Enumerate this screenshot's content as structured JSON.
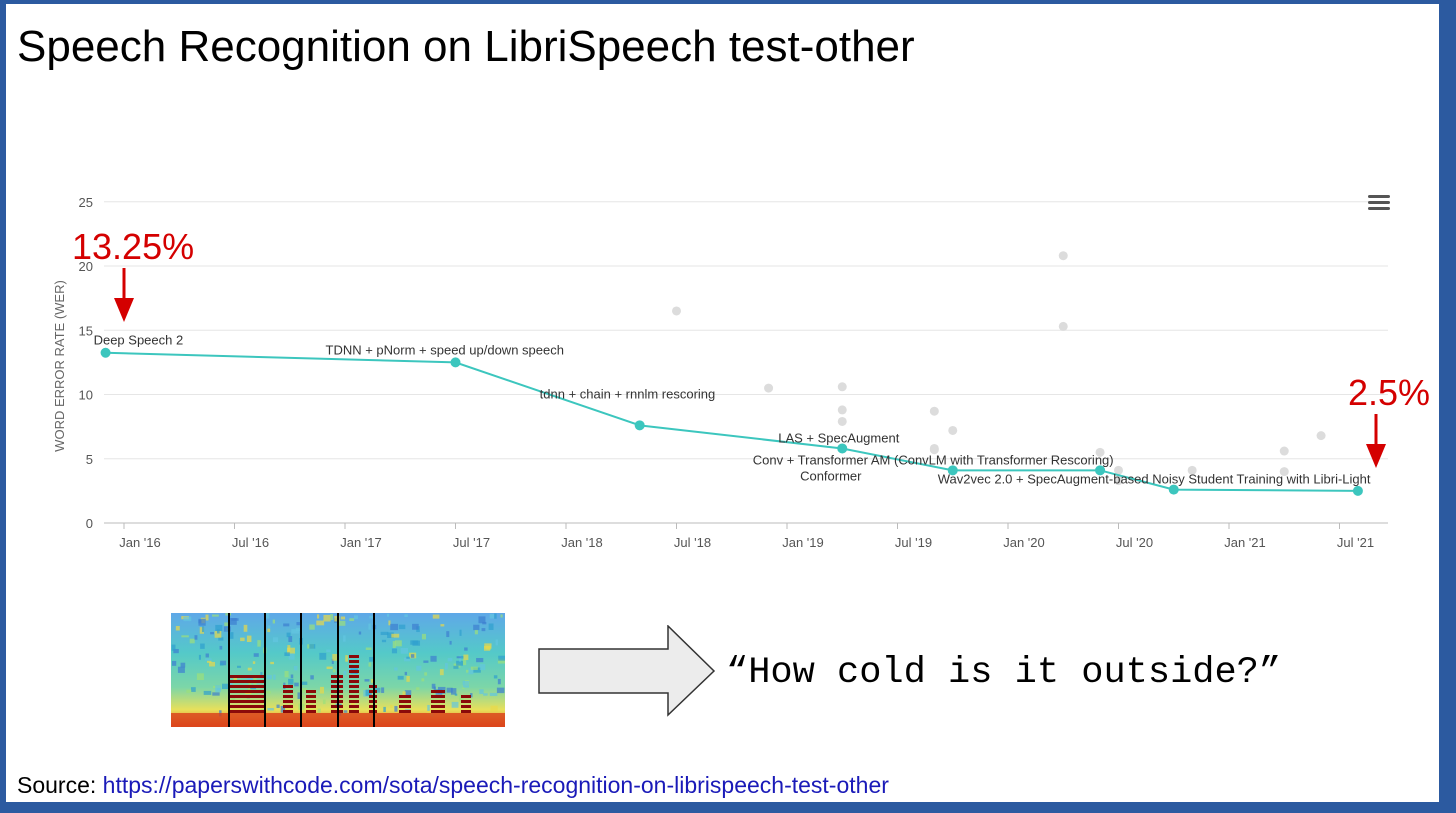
{
  "title": "Speech Recognition on LibriSpeech test-other",
  "chart_data": {
    "type": "line",
    "ylabel": "WORD ERROR RATE (WER)",
    "xlabel": "",
    "ylim": [
      0,
      25
    ],
    "yticks": [
      "0",
      "5",
      "10",
      "15",
      "20",
      "25"
    ],
    "xtick_labels": [
      "Jan '16",
      "Jul '16",
      "Jan '17",
      "Jul '17",
      "Jan '18",
      "Jul '18",
      "Jan '19",
      "Jul '19",
      "Jan '20",
      "Jul '20",
      "Jan '21",
      "Jul '21"
    ],
    "grid": true,
    "sota_series": [
      {
        "x": "2015-12",
        "y": 13.25,
        "label": "Deep Speech 2"
      },
      {
        "x": "2017-07",
        "y": 12.5,
        "label": "TDNN + pNorm + speed up/down speech"
      },
      {
        "x": "2018-05",
        "y": 7.6,
        "label": "tdnn + chain + rnnlm rescoring"
      },
      {
        "x": "2019-04",
        "y": 5.8,
        "label": "LAS + SpecAugment"
      },
      {
        "x": "2019-10",
        "y": 4.1,
        "label": "Conv + Transformer AM (ConvLM with Transformer Rescoring)"
      },
      {
        "x": "2020-06",
        "y": 4.1,
        "label": "Conformer"
      },
      {
        "x": "2020-10",
        "y": 2.6,
        "label": "Wav2vec 2.0 + SpecAugment-based Noisy Student Training with Libri-Light"
      },
      {
        "x": "2021-08",
        "y": 2.5,
        "label": ""
      }
    ],
    "other_points": [
      {
        "x": "2018-07",
        "y": 16.5
      },
      {
        "x": "2018-12",
        "y": 10.5
      },
      {
        "x": "2019-04",
        "y": 10.6
      },
      {
        "x": "2019-04",
        "y": 8.8
      },
      {
        "x": "2019-04",
        "y": 7.9
      },
      {
        "x": "2019-09",
        "y": 8.7
      },
      {
        "x": "2019-09",
        "y": 5.7
      },
      {
        "x": "2019-09",
        "y": 5.8
      },
      {
        "x": "2019-10",
        "y": 7.2
      },
      {
        "x": "2020-04",
        "y": 20.8
      },
      {
        "x": "2020-04",
        "y": 15.3
      },
      {
        "x": "2020-06",
        "y": 5.5
      },
      {
        "x": "2020-07",
        "y": 4.1
      },
      {
        "x": "2020-07",
        "y": 3.3
      },
      {
        "x": "2020-11",
        "y": 4.1
      },
      {
        "x": "2021-04",
        "y": 5.6
      },
      {
        "x": "2021-04",
        "y": 4.0
      },
      {
        "x": "2021-06",
        "y": 6.8
      }
    ],
    "colors": {
      "sota": "#3cc6be",
      "other": "#dcdcdc",
      "grid": "#e6e6e6"
    }
  },
  "annotations": {
    "start": "13.25%",
    "end": "2.5%",
    "color": "#d40000"
  },
  "quote": "“How cold is it outside?”",
  "source": {
    "label": "Source: ",
    "url": "https://paperswithcode.com/sota/speech-recognition-on-librispeech-test-other"
  },
  "icons": {
    "menu": "hamburger-menu-icon",
    "arrow": "right-arrow-icon",
    "spectrogram": "spectrogram-image"
  }
}
